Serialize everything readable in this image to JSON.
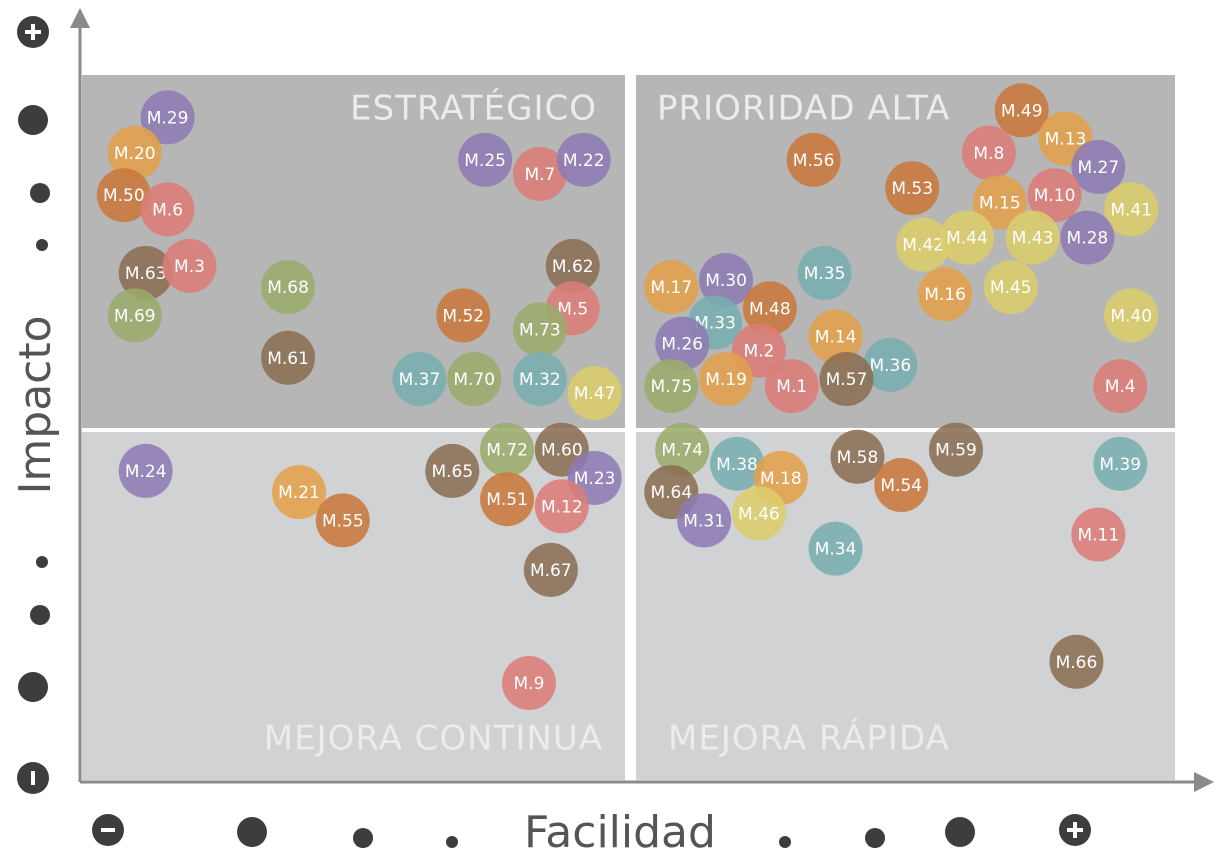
{
  "chart_data": {
    "type": "scatter",
    "x_label": "Facilidad",
    "y_label": "Impacto",
    "annotations": [
      "ESTRATÉGICO",
      "PRIORIDAD ALTA",
      "MEJORA CONTINUA",
      "MEJORA RÁPIDA"
    ],
    "xlim": [
      0,
      10
    ],
    "ylim": [
      0,
      10
    ],
    "labels": [
      "M.29",
      "M.20",
      "M.50",
      "M.6",
      "M.63",
      "M.3",
      "M.69",
      "M.68",
      "M.61",
      "M.52",
      "M.25",
      "M.7",
      "M.22",
      "M.62",
      "M.5",
      "M.73",
      "M.37",
      "M.70",
      "M.32",
      "M.47",
      "M.24",
      "M.21",
      "M.55",
      "M.65",
      "M.72",
      "M.60",
      "M.23",
      "M.51",
      "M.12",
      "M.67",
      "M.9",
      "M.56",
      "M.49",
      "M.8",
      "M.13",
      "M.27",
      "M.53",
      "M.15",
      "M.10",
      "M.41",
      "M.42",
      "M.44",
      "M.43",
      "M.28",
      "M.35",
      "M.45",
      "M.16",
      "M.40",
      "M.17",
      "M.30",
      "M.48",
      "M.33",
      "M.14",
      "M.26",
      "M.2",
      "M.36",
      "M.19",
      "M.1",
      "M.57",
      "M.75",
      "M.4",
      "M.74",
      "M.38",
      "M.58",
      "M.59",
      "M.39",
      "M.18",
      "M.54",
      "M.64",
      "M.46",
      "M.31",
      "M.11",
      "M.34",
      "M.66"
    ],
    "x": [
      0.8,
      0.5,
      0.4,
      0.8,
      0.6,
      1.0,
      0.5,
      1.9,
      1.9,
      3.5,
      3.7,
      4.2,
      4.6,
      4.5,
      4.5,
      4.2,
      3.1,
      3.6,
      4.2,
      4.7,
      0.6,
      2.0,
      2.4,
      3.4,
      3.9,
      4.4,
      4.7,
      3.9,
      4.4,
      4.3,
      4.1,
      6.7,
      8.6,
      8.3,
      9.0,
      9.3,
      7.6,
      8.4,
      8.9,
      9.6,
      7.7,
      8.1,
      8.7,
      9.2,
      6.8,
      8.5,
      7.9,
      9.6,
      5.4,
      5.9,
      6.3,
      5.8,
      6.9,
      5.5,
      6.2,
      7.4,
      5.9,
      6.5,
      7.0,
      5.4,
      9.5,
      5.5,
      6.0,
      7.1,
      8.0,
      9.5,
      6.4,
      7.5,
      5.4,
      6.2,
      5.7,
      9.3,
      6.9,
      9.1
    ],
    "y": [
      9.4,
      8.9,
      8.3,
      8.1,
      7.2,
      7.3,
      6.6,
      7.0,
      6.0,
      6.6,
      8.8,
      8.6,
      8.8,
      7.3,
      6.7,
      6.4,
      5.7,
      5.7,
      5.7,
      5.5,
      4.4,
      4.1,
      3.7,
      4.4,
      4.7,
      4.7,
      4.3,
      4.0,
      3.9,
      3.0,
      1.4,
      8.8,
      9.5,
      8.9,
      9.1,
      8.7,
      8.4,
      8.2,
      8.3,
      8.1,
      7.6,
      7.7,
      7.7,
      7.7,
      7.2,
      7.0,
      6.9,
      6.6,
      7.0,
      7.1,
      6.7,
      6.5,
      6.3,
      6.2,
      6.1,
      5.9,
      5.7,
      5.6,
      5.7,
      5.6,
      5.6,
      4.7,
      4.5,
      4.6,
      4.7,
      4.5,
      4.3,
      4.2,
      4.1,
      3.8,
      3.7,
      3.5,
      3.3,
      1.7
    ],
    "colors": [
      "#8e7bb4",
      "#e3a04b",
      "#c9793e",
      "#dc7d79",
      "#8b6e53",
      "#dc7d79",
      "#9bab6c",
      "#9bab6c",
      "#8b6e53",
      "#c9793e",
      "#8e7bb4",
      "#dc7d79",
      "#8e7bb4",
      "#8b6e53",
      "#dc7d79",
      "#9bab6c",
      "#79aeb1",
      "#9bab6c",
      "#79aeb1",
      "#dccd6c",
      "#8e7bb4",
      "#e3a04b",
      "#c9793e",
      "#8b6e53",
      "#9bab6c",
      "#8b6e53",
      "#8e7bb4",
      "#c9793e",
      "#dc7d79",
      "#8b6e53",
      "#dc7d79",
      "#c9793e",
      "#c9793e",
      "#dc7d79",
      "#e3a04b",
      "#8e7bb4",
      "#c9793e",
      "#e3a04b",
      "#dc7d79",
      "#dccd6c",
      "#dccd6c",
      "#dccd6c",
      "#dccd6c",
      "#8e7bb4",
      "#79aeb1",
      "#dccd6c",
      "#e3a04b",
      "#dccd6c",
      "#e3a04b",
      "#8e7bb4",
      "#c9793e",
      "#79aeb1",
      "#e3a04b",
      "#8e7bb4",
      "#dc7d79",
      "#79aeb1",
      "#e3a04b",
      "#dc7d79",
      "#8b6e53",
      "#9bab6c",
      "#dc7d79",
      "#9bab6c",
      "#79aeb1",
      "#8b6e53",
      "#8b6e53",
      "#79aeb1",
      "#e3a04b",
      "#c9793e",
      "#8b6e53",
      "#dccd6c",
      "#8e7bb4",
      "#dc7d79",
      "#79aeb1",
      "#8b6e53"
    ]
  }
}
